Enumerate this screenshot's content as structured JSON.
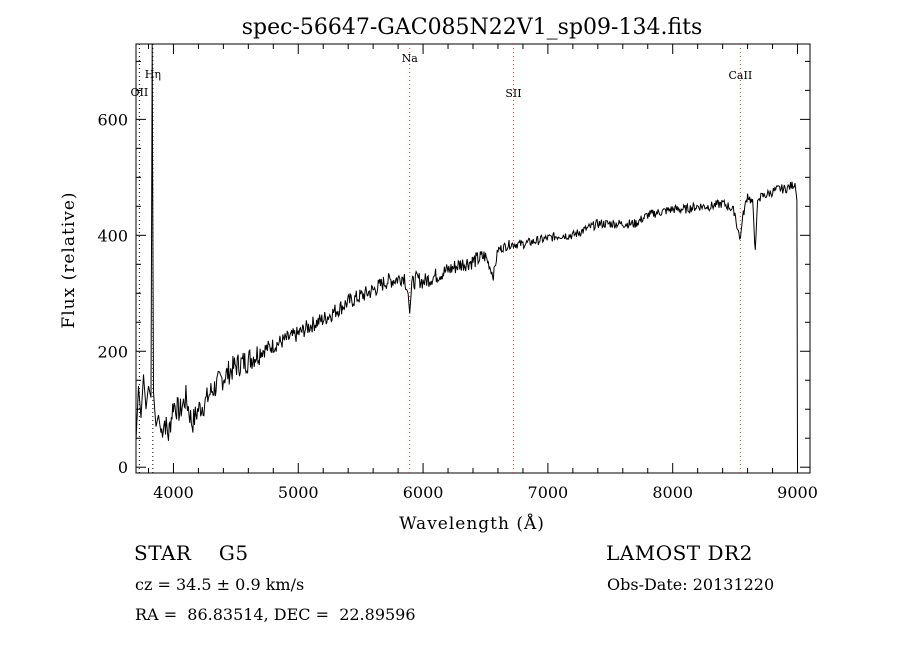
{
  "chart_data": {
    "type": "line",
    "title": "spec-56647-GAC085N22V1_sp09-134.fits",
    "xlabel": "Wavelength (Å)",
    "ylabel": "Flux (relative)",
    "xlim": [
      3700,
      9100
    ],
    "ylim": [
      -10,
      730
    ],
    "xticks": [
      "4000",
      "5000",
      "6000",
      "7000",
      "8000",
      "9000"
    ],
    "yticks": [
      "0",
      "200",
      "400",
      "600"
    ],
    "series": [
      {
        "values_x": [
          3700,
          3720,
          3740,
          3760,
          3780,
          3800,
          3820,
          3830,
          3840,
          3860,
          3880,
          3900,
          3930,
          3960,
          4000,
          4050,
          4100,
          4150,
          4200,
          4250,
          4300,
          4400,
          4500,
          4600,
          4700,
          4800,
          4900,
          5000,
          5100,
          5200,
          5300,
          5400,
          5500,
          5600,
          5700,
          5800,
          5850,
          5880,
          5893,
          5910,
          5950,
          6000,
          6100,
          6200,
          6300,
          6400,
          6500,
          6563,
          6600,
          6700,
          6800,
          6900,
          7000,
          7100,
          7200,
          7300,
          7400,
          7500,
          7600,
          7700,
          7800,
          7900,
          8000,
          8100,
          8200,
          8300,
          8400,
          8450,
          8498,
          8520,
          8542,
          8560,
          8600,
          8640,
          8662,
          8680,
          8700,
          8750,
          8800,
          8850,
          8900,
          8950,
          8980,
          8995,
          9000
        ],
        "values_y": [
          45,
          140,
          85,
          160,
          100,
          140,
          120,
          730,
          130,
          70,
          90,
          60,
          80,
          55,
          110,
          95,
          120,
          75,
          100,
          110,
          130,
          155,
          175,
          185,
          200,
          210,
          220,
          230,
          245,
          255,
          270,
          285,
          295,
          305,
          320,
          325,
          330,
          300,
          265,
          315,
          325,
          320,
          330,
          340,
          350,
          355,
          365,
          330,
          375,
          385,
          385,
          390,
          395,
          400,
          400,
          410,
          420,
          420,
          420,
          420,
          435,
          440,
          445,
          445,
          450,
          450,
          455,
          450,
          440,
          410,
          395,
          430,
          470,
          455,
          375,
          460,
          465,
          470,
          475,
          480,
          480,
          485,
          490,
          460,
          5
        ],
        "style": "step-like noisy spectrum"
      }
    ],
    "lines": [
      {
        "name": "OII",
        "wavelength": 3727,
        "color": "#000000"
      },
      {
        "name": "Hη",
        "wavelength": 3835,
        "color": "#000000"
      },
      {
        "name": "Na",
        "wavelength": 5893,
        "color": "#d04040"
      },
      {
        "name": "SII",
        "wavelength": 6724,
        "color": "#d04040"
      },
      {
        "name": "CaII",
        "wavelength": 8542,
        "color": "#d04040"
      }
    ],
    "grid": false,
    "legend": "none"
  },
  "info": {
    "class_text": "STAR    G5",
    "survey": "LAMOST DR2",
    "cz": "cz = 34.5 ± 0.9 km/s",
    "obs_date": "Obs-Date: 20131220",
    "radec": "RA =  86.83514, DEC =  22.89596"
  }
}
